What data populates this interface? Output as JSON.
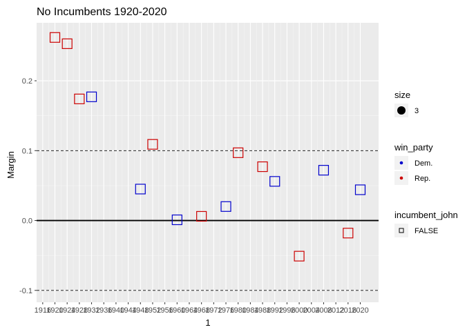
{
  "chart_data": {
    "type": "scatter",
    "title": "No Incumbents 1920-2020",
    "xlabel": "1",
    "ylabel": "Margin",
    "xlim": [
      1914,
      2026
    ],
    "ylim": [
      -0.117,
      0.283
    ],
    "x_ticks": [
      1916,
      1920,
      1924,
      1928,
      1932,
      1936,
      1940,
      1944,
      1948,
      1952,
      1956,
      1960,
      1964,
      1968,
      1972,
      1976,
      1980,
      1984,
      1988,
      1992,
      1996,
      2000,
      2004,
      2008,
      2012,
      2016,
      2020
    ],
    "y_ticks": [
      -0.1,
      0.0,
      0.1,
      0.2
    ],
    "y_tick_labels": [
      "-0.1",
      "0.0",
      "0.1",
      "0.2"
    ],
    "hlines": [
      {
        "y": 0.1,
        "style": "dashed"
      },
      {
        "y": 0.0,
        "style": "solid"
      },
      {
        "y": -0.1,
        "style": "dashed"
      }
    ],
    "grid": true,
    "series": [
      {
        "name": "Dem.",
        "color": "#0000cc",
        "points": [
          {
            "x": 1932,
            "y": 0.177
          },
          {
            "x": 1948,
            "y": 0.045
          },
          {
            "x": 1960,
            "y": 0.001
          },
          {
            "x": 1976,
            "y": 0.02
          },
          {
            "x": 1992,
            "y": 0.056
          },
          {
            "x": 2008,
            "y": 0.072
          },
          {
            "x": 2020,
            "y": 0.044
          }
        ]
      },
      {
        "name": "Rep.",
        "color": "#cc0000",
        "points": [
          {
            "x": 1920,
            "y": 0.262
          },
          {
            "x": 1924,
            "y": 0.253
          },
          {
            "x": 1928,
            "y": 0.174
          },
          {
            "x": 1952,
            "y": 0.109
          },
          {
            "x": 1968,
            "y": 0.006
          },
          {
            "x": 1980,
            "y": 0.097
          },
          {
            "x": 1988,
            "y": 0.077
          },
          {
            "x": 2000,
            "y": -0.051
          },
          {
            "x": 2016,
            "y": -0.018
          }
        ]
      }
    ],
    "legend": {
      "placement": "right",
      "groups": [
        {
          "title": "size",
          "items": [
            {
              "label": "3",
              "kind": "size"
            }
          ]
        },
        {
          "title": "win_party",
          "items": [
            {
              "label": "Dem.",
              "kind": "dot",
              "color": "#0000cc"
            },
            {
              "label": "Rep.",
              "kind": "dot",
              "color": "#cc0000"
            }
          ]
        },
        {
          "title": "incumbent_john",
          "items": [
            {
              "label": "FALSE",
              "kind": "square"
            }
          ]
        }
      ]
    }
  }
}
